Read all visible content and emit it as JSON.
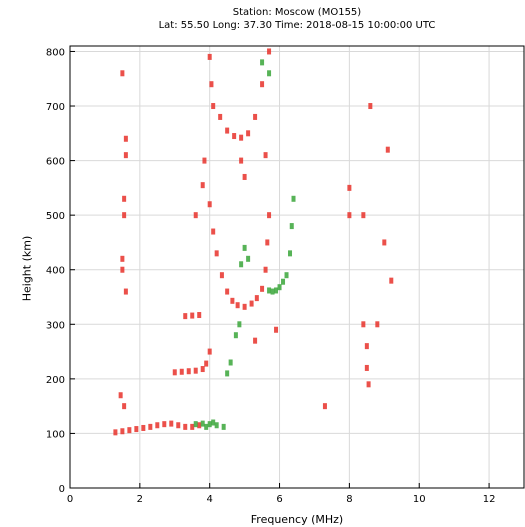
{
  "chart_data": {
    "type": "scatter",
    "title": "Station: Moscow (MO155)",
    "subtitle": "Lat: 55.50 Long: 37.30 Time: 2018-08-15 10:00:00 UTC",
    "xlabel": "Frequency (MHz)",
    "ylabel": "Height (km)",
    "xlim": [
      0,
      13
    ],
    "ylim": [
      0,
      810
    ],
    "xticks": [
      0,
      2,
      4,
      6,
      8,
      10,
      12
    ],
    "yticks": [
      0,
      100,
      200,
      300,
      400,
      500,
      600,
      700,
      800
    ],
    "grid": true,
    "colors": {
      "o_mode": "#e8312a",
      "x_mode": "#3aa63a",
      "grid": "#d9d9d9"
    },
    "series": [
      {
        "color": "#e8312a",
        "points": [
          [
            1.3,
            102
          ],
          [
            1.5,
            104
          ],
          [
            1.7,
            106
          ],
          [
            1.9,
            108
          ],
          [
            2.1,
            110
          ],
          [
            2.3,
            112
          ],
          [
            2.5,
            115
          ],
          [
            2.7,
            117
          ],
          [
            2.9,
            118
          ],
          [
            3.1,
            115
          ],
          [
            3.3,
            112
          ],
          [
            3.5,
            112
          ],
          [
            3.7,
            115
          ],
          [
            3.0,
            212
          ],
          [
            3.2,
            213
          ],
          [
            3.4,
            214
          ],
          [
            3.6,
            215
          ],
          [
            3.8,
            218
          ],
          [
            3.9,
            228
          ],
          [
            4.0,
            250
          ],
          [
            3.3,
            315
          ],
          [
            3.5,
            316
          ],
          [
            3.7,
            317
          ],
          [
            4.0,
            520
          ],
          [
            4.1,
            470
          ],
          [
            4.2,
            430
          ],
          [
            4.35,
            390
          ],
          [
            4.5,
            360
          ],
          [
            4.65,
            343
          ],
          [
            4.8,
            335
          ],
          [
            5.0,
            332
          ],
          [
            5.2,
            338
          ],
          [
            5.35,
            348
          ],
          [
            5.5,
            365
          ],
          [
            5.6,
            400
          ],
          [
            5.65,
            450
          ],
          [
            5.7,
            500
          ],
          [
            4.0,
            790
          ],
          [
            4.05,
            740
          ],
          [
            4.1,
            700
          ],
          [
            4.3,
            680
          ],
          [
            4.5,
            655
          ],
          [
            4.7,
            645
          ],
          [
            4.9,
            642
          ],
          [
            5.1,
            650
          ],
          [
            5.3,
            680
          ],
          [
            5.5,
            740
          ],
          [
            5.7,
            800
          ],
          [
            4.9,
            600
          ],
          [
            5.0,
            570
          ],
          [
            5.6,
            610
          ],
          [
            1.5,
            760
          ],
          [
            1.6,
            640
          ],
          [
            1.6,
            610
          ],
          [
            1.55,
            530
          ],
          [
            1.55,
            500
          ],
          [
            1.5,
            420
          ],
          [
            1.5,
            400
          ],
          [
            1.6,
            360
          ],
          [
            1.45,
            170
          ],
          [
            1.55,
            150
          ],
          [
            3.8,
            555
          ],
          [
            3.85,
            600
          ],
          [
            3.6,
            500
          ],
          [
            5.3,
            270
          ],
          [
            5.9,
            290
          ],
          [
            8.0,
            550
          ],
          [
            8.0,
            500
          ],
          [
            8.5,
            260
          ],
          [
            8.5,
            220
          ],
          [
            8.55,
            190
          ],
          [
            8.8,
            300
          ],
          [
            9.0,
            450
          ],
          [
            9.1,
            620
          ],
          [
            9.2,
            380
          ],
          [
            7.3,
            150
          ],
          [
            8.4,
            300
          ],
          [
            8.6,
            700
          ],
          [
            8.4,
            500
          ]
        ]
      },
      {
        "color": "#3aa63a",
        "points": [
          [
            3.6,
            117
          ],
          [
            3.8,
            118
          ],
          [
            4.0,
            117
          ],
          [
            4.2,
            115
          ],
          [
            4.4,
            112
          ],
          [
            3.9,
            112
          ],
          [
            4.1,
            120
          ],
          [
            4.5,
            210
          ],
          [
            4.6,
            230
          ],
          [
            4.75,
            280
          ],
          [
            4.85,
            300
          ],
          [
            4.9,
            410
          ],
          [
            5.0,
            440
          ],
          [
            5.1,
            420
          ],
          [
            5.7,
            362
          ],
          [
            5.8,
            360
          ],
          [
            5.9,
            362
          ],
          [
            6.0,
            368
          ],
          [
            6.1,
            378
          ],
          [
            6.2,
            390
          ],
          [
            6.3,
            430
          ],
          [
            6.35,
            480
          ],
          [
            6.4,
            530
          ],
          [
            5.5,
            780
          ],
          [
            5.7,
            760
          ]
        ]
      }
    ]
  }
}
